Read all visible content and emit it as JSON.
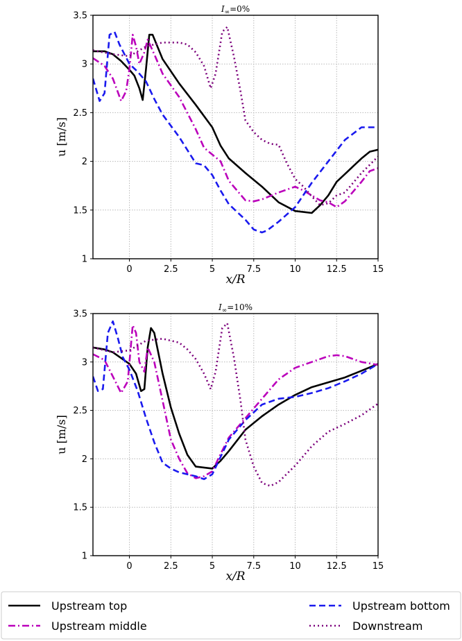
{
  "chart_data": [
    {
      "type": "line",
      "title": "I∞=0%",
      "title_sub": "∞",
      "title_value": "=0%",
      "xlabel": "x/R",
      "ylabel": "u [m/s]",
      "xlim": [
        -2.2,
        15
      ],
      "ylim": [
        1,
        3.5
      ],
      "xticks": [
        "0",
        "2.5",
        "5",
        "7.5",
        "10",
        "12.5",
        "15"
      ],
      "yticks": [
        "1",
        "1.5",
        "2",
        "2.5",
        "3",
        "3.5"
      ],
      "grid": true,
      "series": [
        {
          "name": "Upstream top",
          "color": "#000000",
          "style": "solid",
          "x": [
            -2.2,
            -1.5,
            -1,
            -0.5,
            0,
            0.3,
            0.6,
            0.8,
            1,
            1.2,
            1.4,
            2,
            3,
            4,
            5,
            5.5,
            6,
            7,
            8,
            9,
            10,
            10.5,
            11,
            11.5,
            12,
            12.5,
            13,
            13.5,
            14,
            14.5,
            15
          ],
          "y": [
            3.13,
            3.13,
            3.1,
            3.03,
            2.94,
            2.88,
            2.75,
            2.63,
            2.95,
            3.3,
            3.3,
            3.05,
            2.8,
            2.58,
            2.35,
            2.16,
            2.03,
            1.88,
            1.74,
            1.58,
            1.49,
            1.48,
            1.47,
            1.55,
            1.65,
            1.79,
            1.87,
            1.95,
            2.03,
            2.1,
            2.12
          ]
        },
        {
          "name": "Upstream middle",
          "color": "#bb00bb",
          "style": "dashdot",
          "x": [
            -2.2,
            -1.5,
            -1,
            -0.5,
            -0.2,
            0,
            0.2,
            0.4,
            0.6,
            0.9,
            1.1,
            1.5,
            2,
            3,
            4,
            4.5,
            5,
            5.5,
            6,
            7,
            7.5,
            8,
            9,
            10,
            10.5,
            11,
            11.5,
            12,
            12.5,
            13,
            14,
            14.5,
            15
          ],
          "y": [
            3.06,
            2.98,
            2.85,
            2.62,
            2.72,
            2.95,
            3.3,
            3.18,
            3.0,
            3.12,
            3.25,
            3.1,
            2.9,
            2.66,
            2.33,
            2.14,
            2.07,
            2.0,
            1.8,
            1.6,
            1.59,
            1.61,
            1.68,
            1.74,
            1.7,
            1.65,
            1.6,
            1.58,
            1.53,
            1.59,
            1.79,
            1.9,
            1.93
          ]
        },
        {
          "name": "Upstream bottom",
          "color": "#1a1aee",
          "style": "dashed",
          "x": [
            -2.2,
            -1.8,
            -1.5,
            -1.2,
            -0.9,
            -0.6,
            -0.3,
            0,
            0.5,
            1,
            1.5,
            2,
            3,
            4,
            4.5,
            5,
            5.5,
            6,
            7,
            7.5,
            8,
            8.3,
            9,
            10,
            11,
            12,
            13,
            14,
            14.5,
            15
          ],
          "y": [
            2.85,
            2.62,
            2.7,
            3.3,
            3.33,
            3.2,
            3.1,
            3.0,
            2.92,
            2.82,
            2.64,
            2.48,
            2.25,
            1.98,
            1.96,
            1.86,
            1.7,
            1.56,
            1.4,
            1.3,
            1.27,
            1.29,
            1.38,
            1.53,
            1.78,
            2.0,
            2.22,
            2.35,
            2.35,
            2.35
          ]
        },
        {
          "name": "Downstream",
          "color": "#7b007b",
          "style": "dotted",
          "x": [
            -2.2,
            -1,
            0,
            1,
            2,
            3,
            3.5,
            4,
            4.5,
            4.9,
            5.2,
            5.6,
            5.9,
            6.3,
            6.7,
            7,
            7.5,
            8,
            8.5,
            9,
            9.5,
            10,
            10.5,
            11,
            11.5,
            12,
            12.5,
            13,
            14,
            15
          ],
          "y": [
            3.14,
            3.1,
            3.08,
            3.18,
            3.22,
            3.22,
            3.2,
            3.12,
            2.98,
            2.75,
            2.9,
            3.33,
            3.38,
            3.08,
            2.72,
            2.42,
            2.3,
            2.22,
            2.18,
            2.17,
            1.98,
            1.82,
            1.74,
            1.64,
            1.55,
            1.57,
            1.65,
            1.68,
            1.88,
            2.05
          ]
        }
      ]
    },
    {
      "type": "line",
      "title": "I∞=10%",
      "title_sub": "∞",
      "title_value": "=10%",
      "xlabel": "x/R",
      "ylabel": "u [m/s]",
      "xlim": [
        -2.2,
        15
      ],
      "ylim": [
        1,
        3.5
      ],
      "xticks": [
        "0",
        "2.5",
        "5",
        "7.5",
        "10",
        "12.5",
        "15"
      ],
      "yticks": [
        "1",
        "1.5",
        "2",
        "2.5",
        "3",
        "3.5"
      ],
      "grid": true,
      "series": [
        {
          "name": "Upstream top",
          "color": "#000000",
          "style": "solid",
          "x": [
            -2.2,
            -1.5,
            -1,
            -0.5,
            0,
            0.4,
            0.7,
            0.9,
            1.1,
            1.3,
            1.5,
            2,
            2.5,
            3,
            3.5,
            4,
            5,
            5.5,
            6,
            7,
            8,
            9,
            10,
            11,
            12,
            13,
            14,
            15
          ],
          "y": [
            3.15,
            3.13,
            3.1,
            3.04,
            2.98,
            2.88,
            2.7,
            2.72,
            3.15,
            3.35,
            3.3,
            2.88,
            2.53,
            2.26,
            2.04,
            1.92,
            1.9,
            1.98,
            2.08,
            2.3,
            2.44,
            2.56,
            2.66,
            2.74,
            2.79,
            2.84,
            2.91,
            2.98
          ]
        },
        {
          "name": "Upstream middle",
          "color": "#bb00bb",
          "style": "dashdot",
          "x": [
            -2.2,
            -1.5,
            -1,
            -0.5,
            -0.1,
            0.2,
            0.4,
            0.6,
            0.9,
            1.1,
            1.5,
            2,
            2.5,
            3,
            3.5,
            4,
            4.5,
            5,
            5.5,
            6,
            7,
            8,
            9,
            10,
            11,
            12,
            12.5,
            13,
            14,
            15
          ],
          "y": [
            3.08,
            3.02,
            2.85,
            2.68,
            2.8,
            3.38,
            3.3,
            3.0,
            2.9,
            3.15,
            3.0,
            2.6,
            2.2,
            2.0,
            1.85,
            1.8,
            1.82,
            1.87,
            2.05,
            2.22,
            2.42,
            2.62,
            2.82,
            2.94,
            3.0,
            3.06,
            3.07,
            3.06,
            3.0,
            2.97
          ]
        },
        {
          "name": "Upstream bottom",
          "color": "#1a1aee",
          "style": "dashed",
          "x": [
            -2.2,
            -1.9,
            -1.6,
            -1.3,
            -1,
            -0.7,
            -0.4,
            0,
            0.5,
            1,
            1.5,
            2,
            2.5,
            3,
            3.5,
            4,
            4.5,
            5,
            5.5,
            6,
            7,
            8,
            9,
            10,
            11,
            12,
            13,
            14,
            15
          ],
          "y": [
            2.85,
            2.7,
            2.72,
            3.3,
            3.42,
            3.25,
            3.05,
            2.92,
            2.7,
            2.42,
            2.17,
            1.96,
            1.9,
            1.86,
            1.84,
            1.82,
            1.79,
            1.84,
            2.02,
            2.2,
            2.4,
            2.56,
            2.62,
            2.64,
            2.68,
            2.73,
            2.8,
            2.88,
            2.98
          ]
        },
        {
          "name": "Downstream",
          "color": "#7b007b",
          "style": "dotted",
          "x": [
            -2.2,
            -1,
            0,
            1,
            2,
            3,
            3.5,
            4,
            4.5,
            4.9,
            5.2,
            5.6,
            5.9,
            6.3,
            6.7,
            7,
            7.5,
            8,
            8.5,
            9,
            10,
            11,
            12,
            13,
            14,
            15
          ],
          "y": [
            3.15,
            3.1,
            3.12,
            3.22,
            3.24,
            3.2,
            3.13,
            3.03,
            2.88,
            2.72,
            2.9,
            3.35,
            3.4,
            3.05,
            2.6,
            2.2,
            1.92,
            1.75,
            1.72,
            1.76,
            1.93,
            2.13,
            2.28,
            2.36,
            2.45,
            2.57
          ]
        }
      ]
    }
  ],
  "legend": {
    "placement": "bottom",
    "items": [
      {
        "label": "Upstream top",
        "color": "#000000",
        "style": "solid"
      },
      {
        "label": "Upstream bottom",
        "color": "#1a1aee",
        "style": "dashed"
      },
      {
        "label": "Upstream middle",
        "color": "#bb00bb",
        "style": "dashdot"
      },
      {
        "label": "Downstream",
        "color": "#7b007b",
        "style": "dotted"
      }
    ]
  }
}
